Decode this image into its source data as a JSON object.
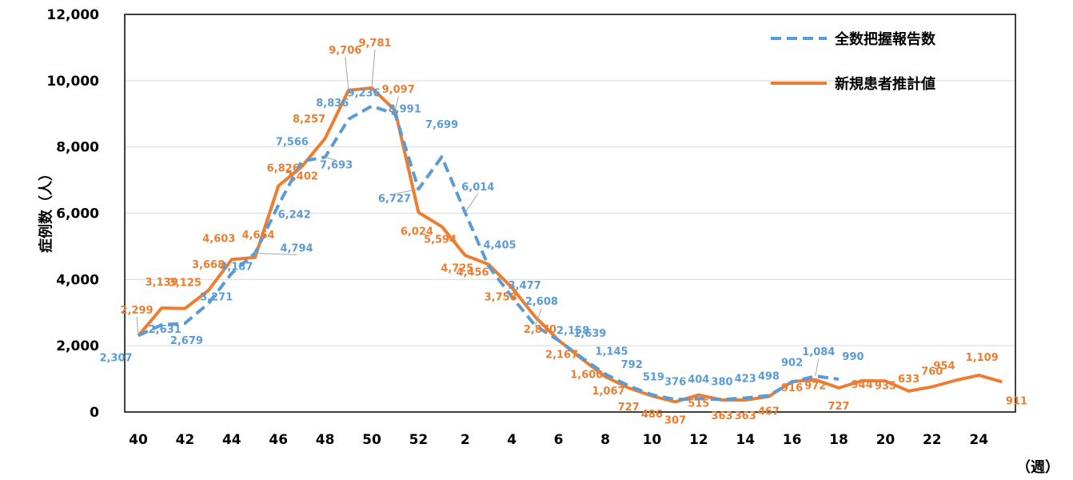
{
  "chart_data": {
    "type": "line",
    "ylabel": "症例数（人）",
    "xlabel": "（週）",
    "ylim": [
      0,
      12000
    ],
    "yticks": [
      "0",
      "2,000",
      "4,000",
      "6,000",
      "8,000",
      "10,000",
      "12,000"
    ],
    "xticks": [
      "40",
      "42",
      "44",
      "46",
      "48",
      "50",
      "52",
      "2",
      "4",
      "6",
      "8",
      "10",
      "12",
      "14",
      "16",
      "18",
      "20",
      "22",
      "24"
    ],
    "grid": "horizontal",
    "legend_position": "top-right",
    "categories": [
      "40",
      "41",
      "42",
      "43",
      "44",
      "45",
      "46",
      "47",
      "48",
      "49",
      "50",
      "51",
      "52",
      "1",
      "2",
      "3",
      "4",
      "5",
      "6",
      "7",
      "8",
      "9",
      "10",
      "11",
      "12",
      "13",
      "14",
      "15",
      "16",
      "17",
      "18",
      "19",
      "20",
      "21",
      "22",
      "23",
      "24",
      "25"
    ],
    "series": [
      {
        "name": "全数把握報告数",
        "color": "#5B9BD5",
        "style": "dashed",
        "values": [
          2307,
          2631,
          2679,
          3271,
          4187,
          4794,
          6242,
          7566,
          7693,
          8836,
          9236,
          8991,
          6727,
          7699,
          6014,
          4405,
          3477,
          2608,
          2158,
          1639,
          1145,
          792,
          519,
          376,
          404,
          380,
          423,
          498,
          902,
          1084,
          990,
          null,
          null,
          null,
          null,
          null,
          null,
          null
        ],
        "labels": [
          "2,307",
          "2,631",
          "2,679",
          "3,271",
          "4,187",
          "4,794",
          "6,242",
          "7,566",
          "7,693",
          "8,836",
          "9,236",
          "8,991",
          "6,727",
          "7,699",
          "6,014",
          "4,405",
          "3,477",
          "2,608",
          "2,158",
          "1,639",
          "1,145",
          "792",
          "519",
          "376",
          "404",
          "380",
          "423",
          "498",
          "902",
          "1,084",
          "990",
          "",
          "",
          "",
          "",
          "",
          "",
          ""
        ]
      },
      {
        "name": "新規患者推計値",
        "color": "#ED7D31",
        "style": "solid",
        "values": [
          2299,
          3139,
          3125,
          3668,
          4603,
          4664,
          6826,
          7402,
          8257,
          9706,
          9781,
          9097,
          6024,
          5594,
          4725,
          4456,
          3758,
          2870,
          2167,
          1600,
          1067,
          727,
          486,
          307,
          515,
          363,
          363,
          467,
          916,
          972,
          727,
          944,
          935,
          633,
          760,
          954,
          1109,
          911
        ],
        "labels": [
          "2,299",
          "3,139",
          "3,125",
          "3,668",
          "4,603",
          "4,664",
          "6,826",
          "7,402",
          "8,257",
          "9,706",
          "9,781",
          "9,097",
          "6,024",
          "5,594",
          "4,725",
          "4,456",
          "3,758",
          "2,870",
          "2,167",
          "1,600",
          "1,067",
          "727",
          "486",
          "307",
          "515",
          "363",
          "363",
          "467",
          "916",
          "972",
          "727",
          "944",
          "935",
          "633",
          "760",
          "954",
          "1,109",
          "911"
        ]
      }
    ]
  }
}
